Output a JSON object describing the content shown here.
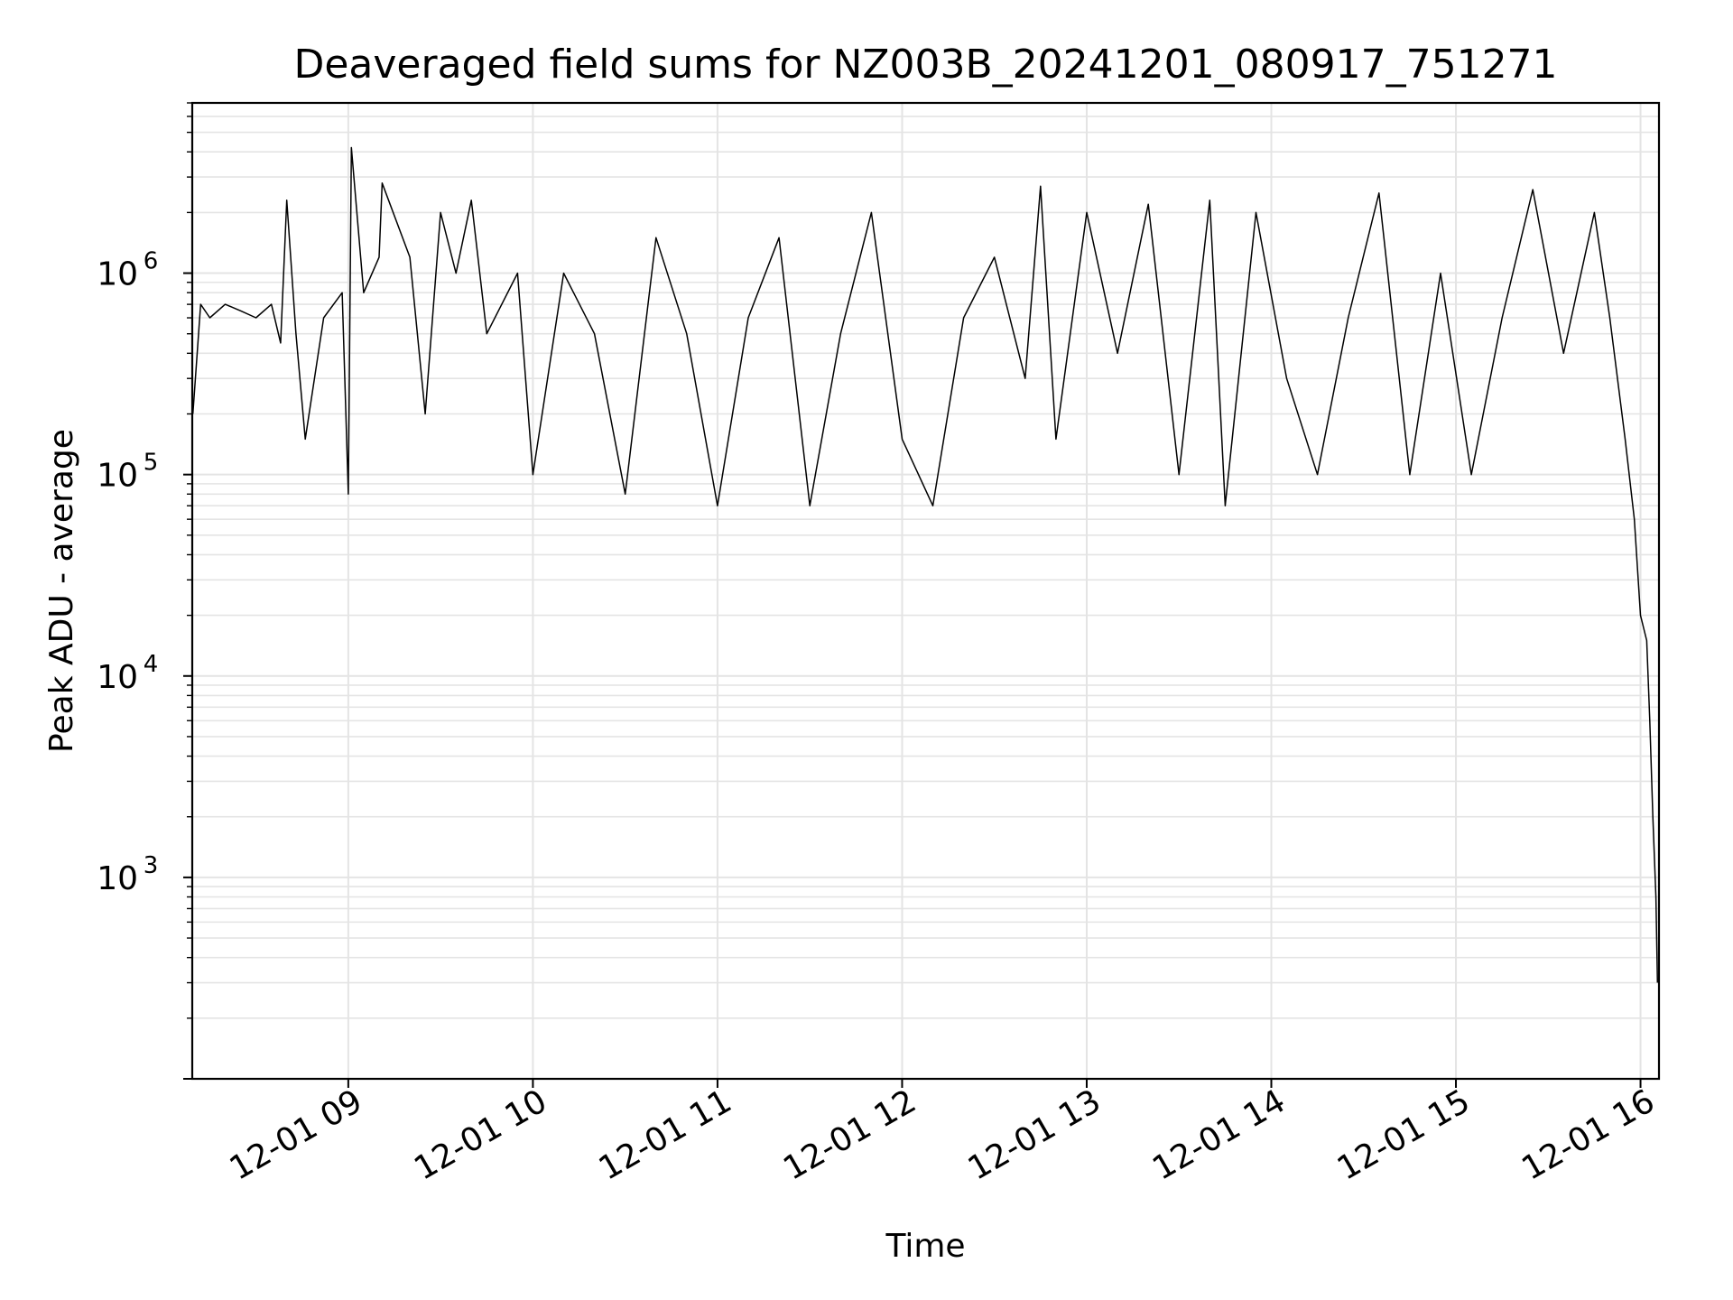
{
  "chart_data": {
    "type": "line",
    "title": "Deaveraged field sums for NZ003B_20241201_080917_751271",
    "xlabel": "Time",
    "ylabel": "Peak ADU - average",
    "xlim": [
      "2024-12-01 08:09:17",
      "2024-12-01 16:06:00"
    ],
    "ylim": [
      100,
      7000000
    ],
    "y_scale": "log",
    "grid": true,
    "grid_minor": true,
    "x_tick_labels": [
      "12-01 09",
      "12-01 10",
      "12-01 11",
      "12-01 12",
      "12-01 13",
      "12-01 14",
      "12-01 15",
      "12-01 16"
    ],
    "y_tick_labels": [
      {
        "base": "10",
        "exp": "3",
        "value": 1000
      },
      {
        "base": "10",
        "exp": "4",
        "value": 10000
      },
      {
        "base": "10",
        "exp": "5",
        "value": 100000
      },
      {
        "base": "10",
        "exp": "6",
        "value": 1000000
      }
    ],
    "series": [
      {
        "color": "#000000",
        "points": [
          [
            "2024-12-01 08:09:30",
            200000
          ],
          [
            "2024-12-01 08:12:00",
            700000
          ],
          [
            "2024-12-01 08:15:00",
            600000
          ],
          [
            "2024-12-01 08:20:00",
            700000
          ],
          [
            "2024-12-01 08:25:00",
            650000
          ],
          [
            "2024-12-01 08:30:00",
            600000
          ],
          [
            "2024-12-01 08:35:00",
            700000
          ],
          [
            "2024-12-01 08:38:00",
            450000
          ],
          [
            "2024-12-01 08:40:00",
            2300000
          ],
          [
            "2024-12-01 08:43:00",
            500000
          ],
          [
            "2024-12-01 08:46:00",
            150000
          ],
          [
            "2024-12-01 08:52:00",
            600000
          ],
          [
            "2024-12-01 08:58:00",
            800000
          ],
          [
            "2024-12-01 09:00:00",
            80000
          ],
          [
            "2024-12-01 09:01:00",
            4200000
          ],
          [
            "2024-12-01 09:05:00",
            800000
          ],
          [
            "2024-12-01 09:10:00",
            1200000
          ],
          [
            "2024-12-01 09:11:00",
            2800000
          ],
          [
            "2024-12-01 09:20:00",
            1200000
          ],
          [
            "2024-12-01 09:25:00",
            200000
          ],
          [
            "2024-12-01 09:30:00",
            2000000
          ],
          [
            "2024-12-01 09:35:00",
            1000000
          ],
          [
            "2024-12-01 09:40:00",
            2300000
          ],
          [
            "2024-12-01 09:45:00",
            500000
          ],
          [
            "2024-12-01 09:55:00",
            1000000
          ],
          [
            "2024-12-01 10:00:00",
            100000
          ],
          [
            "2024-12-01 10:10:00",
            1000000
          ],
          [
            "2024-12-01 10:20:00",
            500000
          ],
          [
            "2024-12-01 10:30:00",
            80000
          ],
          [
            "2024-12-01 10:40:00",
            1500000
          ],
          [
            "2024-12-01 10:50:00",
            500000
          ],
          [
            "2024-12-01 11:00:00",
            70000
          ],
          [
            "2024-12-01 11:10:00",
            600000
          ],
          [
            "2024-12-01 11:20:00",
            1500000
          ],
          [
            "2024-12-01 11:30:00",
            70000
          ],
          [
            "2024-12-01 11:40:00",
            500000
          ],
          [
            "2024-12-01 11:50:00",
            2000000
          ],
          [
            "2024-12-01 12:00:00",
            150000
          ],
          [
            "2024-12-01 12:10:00",
            70000
          ],
          [
            "2024-12-01 12:20:00",
            600000
          ],
          [
            "2024-12-01 12:30:00",
            1200000
          ],
          [
            "2024-12-01 12:40:00",
            300000
          ],
          [
            "2024-12-01 12:45:00",
            2700000
          ],
          [
            "2024-12-01 12:50:00",
            150000
          ],
          [
            "2024-12-01 13:00:00",
            2000000
          ],
          [
            "2024-12-01 13:10:00",
            400000
          ],
          [
            "2024-12-01 13:20:00",
            2200000
          ],
          [
            "2024-12-01 13:30:00",
            100000
          ],
          [
            "2024-12-01 13:40:00",
            2300000
          ],
          [
            "2024-12-01 13:45:00",
            70000
          ],
          [
            "2024-12-01 13:55:00",
            2000000
          ],
          [
            "2024-12-01 14:05:00",
            300000
          ],
          [
            "2024-12-01 14:15:00",
            100000
          ],
          [
            "2024-12-01 14:25:00",
            600000
          ],
          [
            "2024-12-01 14:35:00",
            2500000
          ],
          [
            "2024-12-01 14:45:00",
            100000
          ],
          [
            "2024-12-01 14:55:00",
            1000000
          ],
          [
            "2024-12-01 15:05:00",
            100000
          ],
          [
            "2024-12-01 15:15:00",
            600000
          ],
          [
            "2024-12-01 15:25:00",
            2600000
          ],
          [
            "2024-12-01 15:35:00",
            400000
          ],
          [
            "2024-12-01 15:45:00",
            2000000
          ],
          [
            "2024-12-01 15:50:00",
            600000
          ],
          [
            "2024-12-01 15:55:00",
            150000
          ],
          [
            "2024-12-01 15:58:00",
            60000
          ],
          [
            "2024-12-01 16:00:00",
            20000
          ],
          [
            "2024-12-01 16:02:00",
            15000
          ],
          [
            "2024-12-01 16:03:00",
            6000
          ],
          [
            "2024-12-01 16:04:00",
            2000
          ],
          [
            "2024-12-01 16:05:00",
            800
          ],
          [
            "2024-12-01 16:05:30",
            300
          ]
        ]
      }
    ]
  }
}
